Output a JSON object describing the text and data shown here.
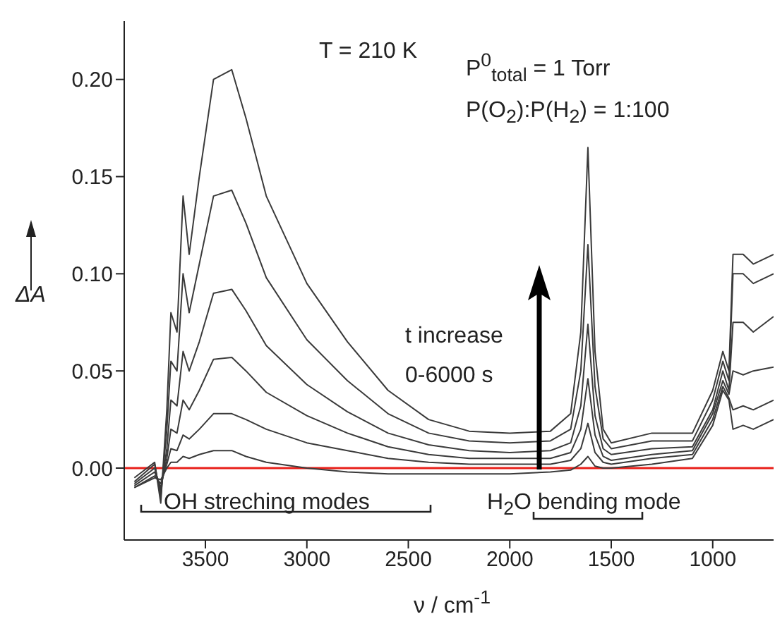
{
  "chart_data": {
    "type": "line",
    "xlabel": "ν / cm$^{-1}$",
    "ylabel": "ΔA",
    "annotations": [
      "T = 210 K",
      "P$^{0}$$_{total}$ = 1 Torr",
      "P(O$_{2}$):P(H$_{2}$) = 1:100",
      "t increase",
      "0-6000 s",
      "OH streching modes",
      "H$_{2}$O bending mode"
    ],
    "x": [
      3850,
      3750,
      3720,
      3690,
      3670,
      3640,
      3610,
      3580,
      3530,
      3460,
      3370,
      3300,
      3200,
      3000,
      2800,
      2600,
      2400,
      2200,
      2000,
      1800,
      1700,
      1650,
      1615,
      1580,
      1540,
      1500,
      1300,
      1100,
      1000,
      950,
      920,
      900,
      850,
      800,
      700
    ],
    "series": [
      {
        "color": "#3a3a3a",
        "values": [
          -0.005,
          0.003,
          -0.018,
          0.03,
          0.08,
          0.07,
          0.14,
          0.11,
          0.15,
          0.2,
          0.205,
          0.18,
          0.14,
          0.095,
          0.065,
          0.04,
          0.025,
          0.019,
          0.018,
          0.019,
          0.028,
          0.07,
          0.165,
          0.06,
          0.02,
          0.013,
          0.018,
          0.018,
          0.04,
          0.06,
          0.05,
          0.11,
          0.11,
          0.105,
          0.11
        ]
      },
      {
        "color": "#3a3a3a",
        "values": [
          -0.007,
          0.002,
          -0.015,
          0.02,
          0.055,
          0.05,
          0.1,
          0.08,
          0.105,
          0.14,
          0.143,
          0.126,
          0.098,
          0.066,
          0.045,
          0.028,
          0.018,
          0.014,
          0.013,
          0.014,
          0.02,
          0.05,
          0.115,
          0.042,
          0.015,
          0.01,
          0.014,
          0.014,
          0.035,
          0.055,
          0.045,
          0.1,
          0.1,
          0.095,
          0.1
        ]
      },
      {
        "color": "#3a3a3a",
        "values": [
          -0.008,
          0.0,
          -0.012,
          0.01,
          0.035,
          0.032,
          0.06,
          0.05,
          0.065,
          0.09,
          0.092,
          0.081,
          0.063,
          0.043,
          0.029,
          0.018,
          0.012,
          0.009,
          0.008,
          0.009,
          0.013,
          0.032,
          0.074,
          0.027,
          0.01,
          0.007,
          0.01,
          0.011,
          0.03,
          0.05,
          0.04,
          0.075,
          0.075,
          0.07,
          0.078
        ]
      },
      {
        "color": "#3a3a3a",
        "values": [
          -0.009,
          -0.002,
          -0.01,
          0.005,
          0.02,
          0.018,
          0.035,
          0.03,
          0.04,
          0.056,
          0.057,
          0.05,
          0.039,
          0.027,
          0.018,
          0.011,
          0.007,
          0.005,
          0.005,
          0.005,
          0.008,
          0.02,
          0.046,
          0.017,
          0.006,
          0.004,
          0.007,
          0.009,
          0.028,
          0.045,
          0.038,
          0.05,
          0.048,
          0.05,
          0.052
        ]
      },
      {
        "color": "#3a3a3a",
        "values": [
          -0.01,
          -0.004,
          -0.008,
          0.002,
          0.01,
          0.009,
          0.017,
          0.015,
          0.02,
          0.028,
          0.028,
          0.025,
          0.02,
          0.013,
          0.009,
          0.005,
          0.003,
          0.002,
          0.002,
          0.002,
          0.004,
          0.01,
          0.023,
          0.008,
          0.003,
          0.002,
          0.005,
          0.007,
          0.025,
          0.042,
          0.036,
          0.03,
          0.032,
          0.03,
          0.035
        ]
      },
      {
        "color": "#3a3a3a",
        "values": [
          -0.01,
          -0.005,
          -0.006,
          0.0,
          0.003,
          0.003,
          0.006,
          0.005,
          0.007,
          0.009,
          0.009,
          0.006,
          0.003,
          0.0,
          -0.002,
          -0.003,
          -0.003,
          -0.003,
          -0.003,
          -0.002,
          -0.001,
          0.002,
          0.006,
          0.001,
          0.0,
          0.0,
          0.002,
          0.005,
          0.022,
          0.04,
          0.035,
          0.02,
          0.022,
          0.02,
          0.025
        ]
      }
    ],
    "xlim": [
      3900,
      700
    ],
    "xticks": [
      3500,
      3000,
      2500,
      2000,
      1500,
      1000
    ],
    "ylim": [
      -0.037,
      0.23
    ],
    "yticks": [
      {
        "value": 0,
        "label": "0.00"
      },
      {
        "value": 0.05,
        "label": "0.05"
      },
      {
        "value": 0.1,
        "label": "0.10"
      },
      {
        "value": 0.15,
        "label": "0.15"
      },
      {
        "value": 0.2,
        "label": "0.20"
      }
    ],
    "ref_lines": [
      {
        "axis": "y",
        "value": 0,
        "color": "#e8201a"
      }
    ],
    "grid": false,
    "legend": false,
    "marker": "none",
    "line_style": "solid"
  }
}
